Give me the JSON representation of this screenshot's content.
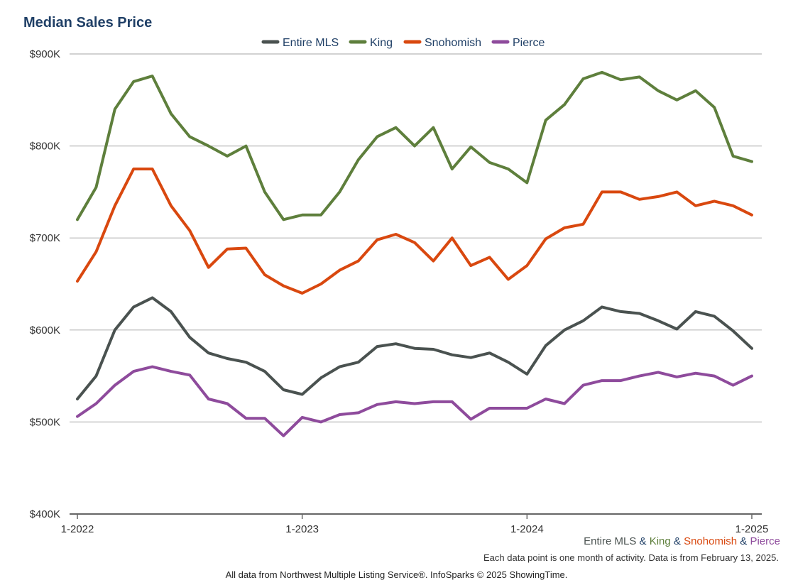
{
  "chart_data": {
    "type": "line",
    "title": "Median Sales Price",
    "xlabel": "",
    "ylabel": "",
    "ylim": [
      400000,
      900000
    ],
    "y_ticks": [
      400000,
      500000,
      600000,
      700000,
      800000,
      900000
    ],
    "y_tick_labels": [
      "$400K",
      "$500K",
      "$600K",
      "$700K",
      "$800K",
      "$900K"
    ],
    "x_tick_labels": [
      "1-2022",
      "1-2023",
      "1-2024",
      "1-2025"
    ],
    "x_tick_index": [
      0,
      12,
      24,
      36
    ],
    "x": [
      "1-2022",
      "2-2022",
      "3-2022",
      "4-2022",
      "5-2022",
      "6-2022",
      "7-2022",
      "8-2022",
      "9-2022",
      "10-2022",
      "11-2022",
      "12-2022",
      "1-2023",
      "2-2023",
      "3-2023",
      "4-2023",
      "5-2023",
      "6-2023",
      "7-2023",
      "8-2023",
      "9-2023",
      "10-2023",
      "11-2023",
      "12-2023",
      "1-2024",
      "2-2024",
      "3-2024",
      "4-2024",
      "5-2024",
      "6-2024",
      "7-2024",
      "8-2024",
      "9-2024",
      "10-2024",
      "11-2024",
      "12-2024",
      "1-2025"
    ],
    "grid": true,
    "legend_position": "top-center",
    "series": [
      {
        "name": "Entire MLS",
        "color": "#4a5250",
        "values": [
          525000,
          550000,
          600000,
          625000,
          635000,
          620000,
          592000,
          575000,
          569000,
          565000,
          555000,
          535000,
          530000,
          548000,
          560000,
          565000,
          582000,
          585000,
          580000,
          579000,
          573000,
          570000,
          575000,
          565000,
          552000,
          583000,
          600000,
          610000,
          625000,
          620000,
          618000,
          610000,
          601000,
          620000,
          615000,
          599000,
          580000
        ]
      },
      {
        "name": "King",
        "color": "#5e7f3c",
        "values": [
          720000,
          755000,
          840000,
          870000,
          876000,
          835000,
          810000,
          800000,
          789000,
          800000,
          750000,
          720000,
          725000,
          725000,
          750000,
          785000,
          810000,
          820000,
          800000,
          820000,
          775000,
          799000,
          782000,
          775000,
          760000,
          828000,
          845000,
          873000,
          880000,
          872000,
          875000,
          860000,
          850000,
          860000,
          842000,
          789000,
          783000
        ]
      },
      {
        "name": "Snohomish",
        "color": "#d9480f",
        "values": [
          653000,
          685000,
          735000,
          775000,
          775000,
          735000,
          708000,
          668000,
          688000,
          689000,
          660000,
          648000,
          640000,
          650000,
          665000,
          675000,
          698000,
          704000,
          695000,
          675000,
          700000,
          670000,
          679000,
          655000,
          670000,
          699000,
          711000,
          715000,
          750000,
          750000,
          742000,
          745000,
          750000,
          735000,
          740000,
          735000,
          725000
        ]
      },
      {
        "name": "Pierce",
        "color": "#8e4b9c",
        "values": [
          506000,
          520000,
          540000,
          555000,
          560000,
          555000,
          551000,
          525000,
          520000,
          504000,
          504000,
          485000,
          505000,
          500000,
          508000,
          510000,
          519000,
          522000,
          520000,
          522000,
          522000,
          503000,
          515000,
          515000,
          515000,
          525000,
          520000,
          540000,
          545000,
          545000,
          550000,
          554000,
          549000,
          553000,
          550000,
          540000,
          550000
        ]
      }
    ]
  },
  "legend_entries": [
    "Entire MLS",
    "King",
    "Snohomish",
    "Pierce"
  ],
  "subtitle_parts": {
    "s1": "Entire MLS",
    "amp1": " & ",
    "s2": "King",
    "amp2": " & ",
    "s3": "Snohomish",
    "amp3": " & ",
    "s4": "Pierce"
  },
  "note": "Each data point is one month of activity. Data is from February 13, 2025.",
  "credit": "All data from Northwest Multiple Listing Service®. InfoSparks © 2025 ShowingTime."
}
